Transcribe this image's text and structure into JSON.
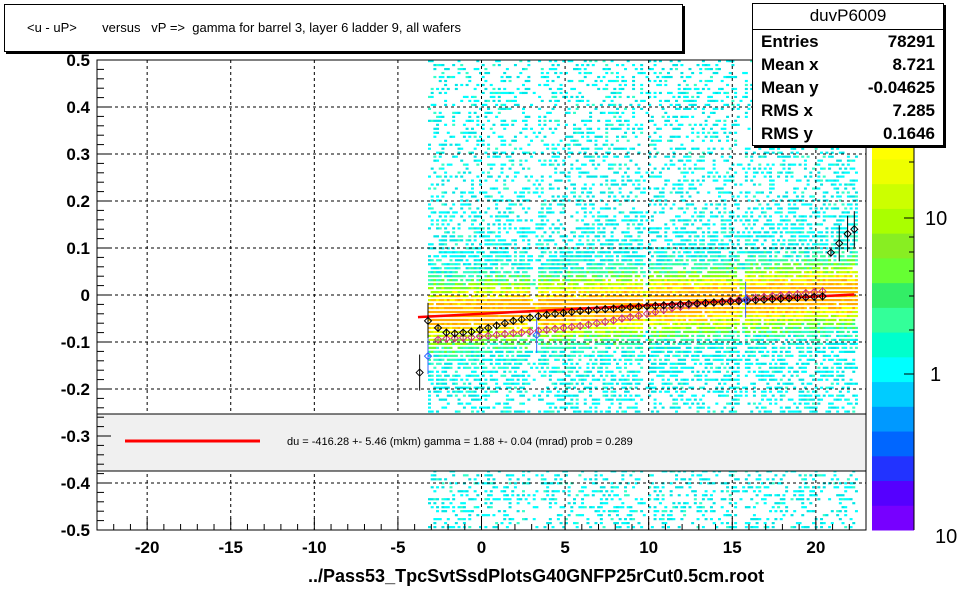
{
  "title": "<u - uP>       versus   vP =>  gamma for barrel 3, layer 6 ladder 9, all wafers",
  "stats": {
    "name": "duvP6009",
    "rows": [
      {
        "label": "Entries",
        "value": "78291"
      },
      {
        "label": "Mean x",
        "value": "8.721"
      },
      {
        "label": "Mean y",
        "value": "-0.04625"
      },
      {
        "label": "RMS x",
        "value": "7.285"
      },
      {
        "label": "RMS y",
        "value": "0.1646"
      }
    ]
  },
  "footer": "../Pass53_TpcSvtSsdPlotsG40GNFP25rCut0.5cm.root",
  "colors": {
    "fit_line": "#ff0000",
    "profile_black": "#000000",
    "profile_pink": "#cc3377",
    "profile_blue": "#3366ff",
    "legend_bg": "#f0f0f0"
  },
  "chart_data": {
    "type": "heatmap",
    "title": "<u - uP>       versus   vP =>  gamma for barrel 3, layer 6 ladder 9, all wafers",
    "xlim": [
      -23,
      23
    ],
    "ylim": [
      -0.5,
      0.5
    ],
    "x_ticks": [
      "-20",
      "-15",
      "-10",
      "-5",
      "0",
      "5",
      "10",
      "15",
      "20"
    ],
    "y_ticks": [
      "-0.5",
      "-0.4",
      "-0.3",
      "-0.2",
      "-0.1",
      "0",
      "0.1",
      "0.2",
      "0.3",
      "0.4",
      "0.5"
    ],
    "grid": true,
    "z_scale": "log",
    "z_tick_labels": [
      "1",
      "10"
    ],
    "z_edge_label": "10",
    "data_x_range": [
      -3.2,
      22.5
    ],
    "fit": {
      "x": [
        -3.8,
        22.3
      ],
      "y": [
        -0.047,
        0.001
      ]
    },
    "legend_text": "du = -416.28 +-  5.46 (mkm) gamma =    1.88 +-  0.04 (mrad) prob = 0.289",
    "profile_black": {
      "x": [
        -3.7,
        -3.2,
        -2.6,
        -2.1,
        -1.6,
        -1.1,
        -0.6,
        -0.1,
        0.4,
        0.9,
        1.4,
        1.9,
        2.4,
        2.9,
        3.4,
        3.9,
        4.4,
        4.9,
        5.4,
        5.9,
        6.4,
        6.9,
        7.4,
        7.9,
        8.4,
        8.9,
        9.4,
        9.9,
        10.4,
        10.9,
        11.4,
        11.9,
        12.4,
        12.9,
        13.4,
        13.9,
        14.4,
        14.9,
        15.4,
        15.9,
        16.4,
        16.9,
        17.4,
        17.9,
        18.4,
        18.9,
        19.4,
        19.9,
        20.4,
        20.9,
        21.4,
        21.9,
        22.3
      ],
      "y": [
        -0.165,
        -0.055,
        -0.07,
        -0.08,
        -0.082,
        -0.08,
        -0.078,
        -0.074,
        -0.07,
        -0.065,
        -0.06,
        -0.055,
        -0.052,
        -0.048,
        -0.045,
        -0.042,
        -0.04,
        -0.038,
        -0.036,
        -0.034,
        -0.033,
        -0.031,
        -0.03,
        -0.029,
        -0.028,
        -0.026,
        -0.025,
        -0.024,
        -0.023,
        -0.022,
        -0.021,
        -0.02,
        -0.019,
        -0.018,
        -0.017,
        -0.016,
        -0.015,
        -0.014,
        -0.013,
        -0.012,
        -0.011,
        -0.01,
        -0.009,
        -0.008,
        -0.007,
        -0.006,
        -0.005,
        -0.004,
        -0.003,
        0.09,
        0.11,
        0.13,
        0.14
      ]
    },
    "profile_pink": {
      "x": [
        -2.6,
        -2.1,
        -1.6,
        -1.1,
        -0.6,
        -0.1,
        0.4,
        0.9,
        1.4,
        1.9,
        2.4,
        2.9,
        3.4,
        3.9,
        4.4,
        4.9,
        5.4,
        5.9,
        6.4,
        6.9,
        7.4,
        7.9,
        8.4,
        8.9,
        9.4,
        9.9,
        10.4,
        10.9,
        11.4,
        11.9,
        12.4,
        12.9,
        13.4,
        13.9,
        14.4,
        14.9,
        15.4,
        15.9,
        16.4,
        16.9,
        17.4,
        17.9,
        18.4,
        18.9,
        19.4,
        19.9,
        20.4
      ],
      "y": [
        -0.095,
        -0.093,
        -0.092,
        -0.091,
        -0.09,
        -0.088,
        -0.087,
        -0.085,
        -0.083,
        -0.081,
        -0.08,
        -0.078,
        -0.076,
        -0.074,
        -0.072,
        -0.07,
        -0.068,
        -0.066,
        -0.063,
        -0.06,
        -0.057,
        -0.054,
        -0.05,
        -0.047,
        -0.044,
        -0.04,
        -0.036,
        -0.032,
        -0.028,
        -0.025,
        -0.022,
        -0.02,
        -0.018,
        -0.016,
        -0.014,
        -0.012,
        -0.01,
        -0.008,
        -0.006,
        -0.004,
        -0.002,
        -0.001,
        0.0,
        0.002,
        0.004,
        0.006,
        0.008
      ]
    },
    "profile_blue": {
      "x": [
        -3.2,
        3.3,
        15.8
      ],
      "y": [
        -0.13,
        -0.085,
        -0.01
      ]
    }
  }
}
